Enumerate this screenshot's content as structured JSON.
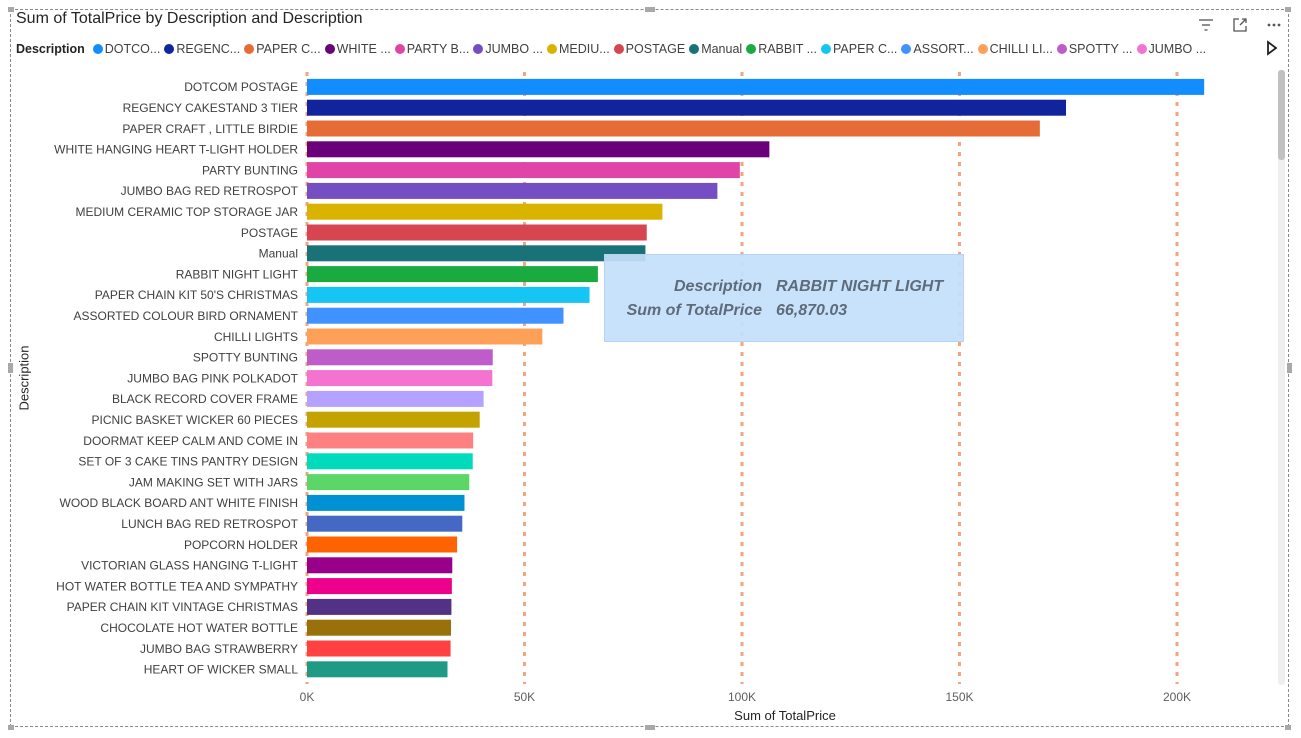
{
  "visual": {
    "title": "Sum of TotalPrice by Description and Description"
  },
  "icons": {
    "filter": "filter-icon",
    "focus": "focus-mode-icon",
    "more": "more-options-icon",
    "legend_next": "chevron-right-icon"
  },
  "legend": {
    "title": "Description",
    "items": [
      {
        "label": "DOTCO...",
        "color": "#118DFF"
      },
      {
        "label": "REGENC...",
        "color": "#12239E"
      },
      {
        "label": "PAPER C...",
        "color": "#E66C37"
      },
      {
        "label": "WHITE ...",
        "color": "#6B007B"
      },
      {
        "label": "PARTY B...",
        "color": "#E044A7"
      },
      {
        "label": "JUMBO ...",
        "color": "#744EC2"
      },
      {
        "label": "MEDIU...",
        "color": "#D9B300"
      },
      {
        "label": "POSTAGE",
        "color": "#D64550"
      },
      {
        "label": "Manual",
        "color": "#197278"
      },
      {
        "label": "RABBIT ...",
        "color": "#1AAB40"
      },
      {
        "label": "PAPER C...",
        "color": "#15C6F4"
      },
      {
        "label": "ASSORT...",
        "color": "#4092FF"
      },
      {
        "label": "CHILLI LI...",
        "color": "#FFA058"
      },
      {
        "label": "SPOTTY ...",
        "color": "#BE5DC9"
      },
      {
        "label": "JUMBO ...",
        "color": "#F472D0"
      }
    ]
  },
  "tooltip": {
    "label1": "Description",
    "value1": "RABBIT NIGHT LIGHT",
    "label2": "Sum of TotalPrice",
    "value2": "66,870.03"
  },
  "chart_data": {
    "type": "bar",
    "orientation": "horizontal",
    "title": "Sum of TotalPrice by Description and Description",
    "xlabel": "Sum of TotalPrice",
    "ylabel": "Description",
    "xlim": [
      0,
      220000
    ],
    "xticks": [
      0,
      50000,
      100000,
      150000,
      200000
    ],
    "xtick_labels": [
      "0K",
      "50K",
      "100K",
      "150K",
      "200K"
    ],
    "grid": "vertical dashed",
    "legend_position": "top",
    "categories": [
      "DOTCOM POSTAGE",
      "REGENCY CAKESTAND 3 TIER",
      "PAPER CRAFT , LITTLE BIRDIE",
      "WHITE HANGING HEART T-LIGHT HOLDER",
      "PARTY BUNTING",
      "JUMBO BAG RED RETROSPOT",
      "MEDIUM CERAMIC TOP STORAGE JAR",
      "POSTAGE",
      "Manual",
      "RABBIT NIGHT LIGHT",
      "PAPER CHAIN KIT 50'S CHRISTMAS",
      "ASSORTED COLOUR BIRD ORNAMENT",
      "CHILLI LIGHTS",
      "SPOTTY BUNTING",
      "JUMBO BAG PINK POLKADOT",
      "BLACK RECORD COVER FRAME",
      "PICNIC BASKET WICKER 60 PIECES",
      "DOORMAT KEEP CALM AND COME IN",
      "SET OF 3 CAKE TINS PANTRY DESIGN",
      "JAM MAKING SET WITH JARS",
      "WOOD BLACK BOARD ANT WHITE FINISH",
      "LUNCH BAG RED RETROSPOT",
      "POPCORN HOLDER",
      "VICTORIAN GLASS HANGING T-LIGHT",
      "HOT WATER BOTTLE TEA AND SYMPATHY",
      "PAPER CHAIN KIT VINTAGE CHRISTMAS",
      "CHOCOLATE HOT WATER BOTTLE",
      "JUMBO BAG STRAWBERRY",
      "HEART OF WICKER SMALL"
    ],
    "values": [
      206245,
      174484,
      168470,
      106292,
      99504,
      94340,
      81700,
      78101,
      77800,
      66870.03,
      64953,
      58960,
      54100,
      42700,
      42600,
      40600,
      39700,
      38200,
      38100,
      37300,
      36200,
      35700,
      34500,
      33400,
      33300,
      33200,
      33100,
      33000,
      32300
    ],
    "colors": [
      "#118DFF",
      "#12239E",
      "#E66C37",
      "#6B007B",
      "#E044A7",
      "#744EC2",
      "#D9B300",
      "#D64550",
      "#197278",
      "#1AAB40",
      "#15C6F4",
      "#4092FF",
      "#FFA058",
      "#BE5DC9",
      "#F472D0",
      "#B5A1FF",
      "#C4A200",
      "#FF8080",
      "#00DBBC",
      "#5BD667",
      "#0091D5",
      "#4668C5",
      "#FF6300",
      "#99008A",
      "#EC008C",
      "#533285",
      "#99700A",
      "#FF4141",
      "#1F9A85"
    ]
  }
}
